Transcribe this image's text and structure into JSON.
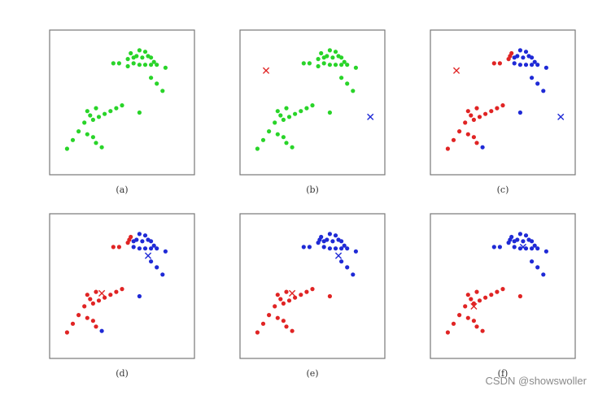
{
  "colors": {
    "green": "#29d429",
    "red": "#e02424",
    "blue": "#1f2ad6",
    "frame": "#777777"
  },
  "watermark": "CSDN @showswoller",
  "chart_data": [
    {
      "type": "scatter",
      "label": "(a)",
      "xlim": [
        -2.5,
        2.5
      ],
      "ylim": [
        -2.5,
        2.5
      ],
      "series": [
        {
          "color": "green",
          "points": [
            [
              0.2,
              1.5
            ],
            [
              0.3,
              1.7
            ],
            [
              0.4,
              1.55
            ],
            [
              0.5,
              1.6
            ],
            [
              0.6,
              1.8
            ],
            [
              0.7,
              1.55
            ],
            [
              0.8,
              1.75
            ],
            [
              0.9,
              1.6
            ],
            [
              1.0,
              1.55
            ],
            [
              1.2,
              1.3
            ],
            [
              0.6,
              1.3
            ],
            [
              0.8,
              1.3
            ],
            [
              1.0,
              1.3
            ],
            [
              1.1,
              1.4
            ],
            [
              -0.1,
              1.35
            ],
            [
              -0.3,
              1.35
            ],
            [
              0.2,
              1.25
            ],
            [
              0.4,
              1.35
            ],
            [
              1.2,
              0.65
            ],
            [
              1.0,
              0.85
            ],
            [
              1.5,
              1.2
            ],
            [
              1.4,
              0.4
            ],
            [
              -1.2,
              -0.3
            ],
            [
              -1.0,
              -0.6
            ],
            [
              -0.8,
              -0.5
            ],
            [
              -0.6,
              -0.4
            ],
            [
              -0.4,
              -0.3
            ],
            [
              -0.2,
              -0.2
            ],
            [
              0.0,
              -0.1
            ],
            [
              -0.9,
              -0.2
            ],
            [
              -1.1,
              -0.45
            ],
            [
              -1.3,
              -0.7
            ],
            [
              -1.5,
              -1.0
            ],
            [
              -1.7,
              -1.3
            ],
            [
              -1.9,
              -1.6
            ],
            [
              -1.2,
              -1.1
            ],
            [
              -0.9,
              -1.4
            ],
            [
              -0.7,
              -1.55
            ],
            [
              0.6,
              -0.35
            ],
            [
              -1.0,
              -1.2
            ]
          ]
        }
      ]
    },
    {
      "type": "scatter",
      "label": "(b)",
      "xlim": [
        -2.5,
        2.5
      ],
      "ylim": [
        -2.5,
        2.5
      ],
      "centroids": [
        {
          "x": -1.6,
          "y": 1.1,
          "color": "red"
        },
        {
          "x": 2.0,
          "y": -0.5,
          "color": "blue"
        }
      ],
      "series": [
        {
          "color": "green",
          "points": [
            [
              0.2,
              1.5
            ],
            [
              0.3,
              1.7
            ],
            [
              0.4,
              1.55
            ],
            [
              0.5,
              1.6
            ],
            [
              0.6,
              1.8
            ],
            [
              0.7,
              1.55
            ],
            [
              0.8,
              1.75
            ],
            [
              0.9,
              1.6
            ],
            [
              1.0,
              1.55
            ],
            [
              1.2,
              1.3
            ],
            [
              0.6,
              1.3
            ],
            [
              0.8,
              1.3
            ],
            [
              1.0,
              1.3
            ],
            [
              1.1,
              1.4
            ],
            [
              -0.1,
              1.35
            ],
            [
              -0.3,
              1.35
            ],
            [
              0.2,
              1.25
            ],
            [
              0.4,
              1.35
            ],
            [
              1.2,
              0.65
            ],
            [
              1.0,
              0.85
            ],
            [
              1.5,
              1.2
            ],
            [
              1.4,
              0.4
            ],
            [
              -1.2,
              -0.3
            ],
            [
              -1.0,
              -0.6
            ],
            [
              -0.8,
              -0.5
            ],
            [
              -0.6,
              -0.4
            ],
            [
              -0.4,
              -0.3
            ],
            [
              -0.2,
              -0.2
            ],
            [
              0.0,
              -0.1
            ],
            [
              -0.9,
              -0.2
            ],
            [
              -1.1,
              -0.45
            ],
            [
              -1.3,
              -0.7
            ],
            [
              -1.5,
              -1.0
            ],
            [
              -1.7,
              -1.3
            ],
            [
              -1.9,
              -1.6
            ],
            [
              -1.2,
              -1.1
            ],
            [
              -0.9,
              -1.4
            ],
            [
              -0.7,
              -1.55
            ],
            [
              0.6,
              -0.35
            ],
            [
              -1.0,
              -1.2
            ]
          ]
        }
      ]
    },
    {
      "type": "scatter",
      "label": "(c)",
      "xlim": [
        -2.5,
        2.5
      ],
      "ylim": [
        -2.5,
        2.5
      ],
      "centroids": [
        {
          "x": -1.6,
          "y": 1.1,
          "color": "red"
        },
        {
          "x": 2.0,
          "y": -0.5,
          "color": "blue"
        }
      ],
      "series": [
        {
          "color": "red",
          "points": [
            [
              -0.1,
              1.35
            ],
            [
              -0.3,
              1.35
            ],
            [
              0.2,
              1.5
            ],
            [
              0.3,
              1.7
            ],
            [
              0.25,
              1.6
            ],
            [
              -1.2,
              -0.3
            ],
            [
              -1.0,
              -0.6
            ],
            [
              -0.8,
              -0.5
            ],
            [
              -0.6,
              -0.4
            ],
            [
              -0.4,
              -0.3
            ],
            [
              -0.2,
              -0.2
            ],
            [
              0.0,
              -0.1
            ],
            [
              -0.9,
              -0.2
            ],
            [
              -1.1,
              -0.45
            ],
            [
              -1.3,
              -0.7
            ],
            [
              -1.5,
              -1.0
            ],
            [
              -1.7,
              -1.3
            ],
            [
              -1.9,
              -1.6
            ],
            [
              -1.2,
              -1.1
            ],
            [
              -0.9,
              -1.4
            ],
            [
              -1.0,
              -1.2
            ]
          ]
        },
        {
          "color": "blue",
          "points": [
            [
              0.4,
              1.55
            ],
            [
              0.5,
              1.6
            ],
            [
              0.6,
              1.8
            ],
            [
              0.7,
              1.55
            ],
            [
              0.8,
              1.75
            ],
            [
              0.9,
              1.6
            ],
            [
              1.0,
              1.55
            ],
            [
              1.2,
              1.3
            ],
            [
              0.6,
              1.3
            ],
            [
              0.8,
              1.3
            ],
            [
              1.0,
              1.3
            ],
            [
              1.1,
              1.4
            ],
            [
              0.4,
              1.35
            ],
            [
              1.2,
              0.65
            ],
            [
              1.0,
              0.85
            ],
            [
              1.5,
              1.2
            ],
            [
              1.4,
              0.4
            ],
            [
              0.6,
              -0.35
            ],
            [
              -0.7,
              -1.55
            ]
          ]
        }
      ]
    },
    {
      "type": "scatter",
      "label": "(d)",
      "xlim": [
        -2.5,
        2.5
      ],
      "ylim": [
        -2.5,
        2.5
      ],
      "centroids": [
        {
          "x": -0.7,
          "y": -0.25,
          "color": "red"
        },
        {
          "x": 0.9,
          "y": 1.05,
          "color": "blue"
        }
      ],
      "series": [
        {
          "color": "red",
          "points": [
            [
              -0.1,
              1.35
            ],
            [
              -0.3,
              1.35
            ],
            [
              0.2,
              1.5
            ],
            [
              0.3,
              1.7
            ],
            [
              0.25,
              1.6
            ],
            [
              -1.2,
              -0.3
            ],
            [
              -1.0,
              -0.6
            ],
            [
              -0.8,
              -0.5
            ],
            [
              -0.6,
              -0.4
            ],
            [
              -0.4,
              -0.3
            ],
            [
              -0.2,
              -0.2
            ],
            [
              0.0,
              -0.1
            ],
            [
              -0.9,
              -0.2
            ],
            [
              -1.1,
              -0.45
            ],
            [
              -1.3,
              -0.7
            ],
            [
              -1.5,
              -1.0
            ],
            [
              -1.7,
              -1.3
            ],
            [
              -1.9,
              -1.6
            ],
            [
              -1.2,
              -1.1
            ],
            [
              -0.9,
              -1.4
            ],
            [
              -1.0,
              -1.2
            ]
          ]
        },
        {
          "color": "blue",
          "points": [
            [
              0.4,
              1.55
            ],
            [
              0.5,
              1.6
            ],
            [
              0.6,
              1.8
            ],
            [
              0.7,
              1.55
            ],
            [
              0.8,
              1.75
            ],
            [
              0.9,
              1.6
            ],
            [
              1.0,
              1.55
            ],
            [
              1.2,
              1.3
            ],
            [
              0.6,
              1.3
            ],
            [
              0.8,
              1.3
            ],
            [
              1.0,
              1.3
            ],
            [
              1.1,
              1.4
            ],
            [
              0.4,
              1.35
            ],
            [
              1.2,
              0.65
            ],
            [
              1.0,
              0.85
            ],
            [
              1.5,
              1.2
            ],
            [
              1.4,
              0.4
            ],
            [
              0.6,
              -0.35
            ],
            [
              -0.7,
              -1.55
            ]
          ]
        }
      ]
    },
    {
      "type": "scatter",
      "label": "(e)",
      "xlim": [
        -2.5,
        2.5
      ],
      "ylim": [
        -2.5,
        2.5
      ],
      "centroids": [
        {
          "x": -0.7,
          "y": -0.25,
          "color": "red"
        },
        {
          "x": 0.9,
          "y": 1.05,
          "color": "blue"
        }
      ],
      "series": [
        {
          "color": "red",
          "points": [
            [
              -1.2,
              -0.3
            ],
            [
              -1.0,
              -0.6
            ],
            [
              -0.8,
              -0.5
            ],
            [
              -0.6,
              -0.4
            ],
            [
              -0.4,
              -0.3
            ],
            [
              -0.2,
              -0.2
            ],
            [
              0.0,
              -0.1
            ],
            [
              -0.9,
              -0.2
            ],
            [
              -1.1,
              -0.45
            ],
            [
              -1.3,
              -0.7
            ],
            [
              -1.5,
              -1.0
            ],
            [
              -1.7,
              -1.3
            ],
            [
              -1.9,
              -1.6
            ],
            [
              -1.2,
              -1.1
            ],
            [
              -0.9,
              -1.4
            ],
            [
              -1.0,
              -1.2
            ],
            [
              -0.7,
              -1.55
            ],
            [
              0.6,
              -0.35
            ]
          ]
        },
        {
          "color": "blue",
          "points": [
            [
              0.2,
              1.5
            ],
            [
              0.3,
              1.7
            ],
            [
              0.4,
              1.55
            ],
            [
              0.5,
              1.6
            ],
            [
              0.6,
              1.8
            ],
            [
              0.7,
              1.55
            ],
            [
              0.8,
              1.75
            ],
            [
              0.9,
              1.6
            ],
            [
              1.0,
              1.55
            ],
            [
              1.2,
              1.3
            ],
            [
              0.6,
              1.3
            ],
            [
              0.8,
              1.3
            ],
            [
              1.0,
              1.3
            ],
            [
              1.1,
              1.4
            ],
            [
              -0.1,
              1.35
            ],
            [
              -0.3,
              1.35
            ],
            [
              0.25,
              1.6
            ],
            [
              0.4,
              1.35
            ],
            [
              1.2,
              0.65
            ],
            [
              1.0,
              0.85
            ],
            [
              1.5,
              1.2
            ],
            [
              1.4,
              0.4
            ]
          ]
        }
      ]
    },
    {
      "type": "scatter",
      "label": "(f)",
      "xlim": [
        -2.5,
        2.5
      ],
      "ylim": [
        -2.5,
        2.5
      ],
      "centroids": [
        {
          "x": -1.0,
          "y": -0.7,
          "color": "red"
        },
        {
          "x": 0.7,
          "y": 1.35,
          "color": "blue"
        }
      ],
      "series": [
        {
          "color": "red",
          "points": [
            [
              -1.2,
              -0.3
            ],
            [
              -1.0,
              -0.6
            ],
            [
              -0.8,
              -0.5
            ],
            [
              -0.6,
              -0.4
            ],
            [
              -0.4,
              -0.3
            ],
            [
              -0.2,
              -0.2
            ],
            [
              0.0,
              -0.1
            ],
            [
              -0.9,
              -0.2
            ],
            [
              -1.1,
              -0.45
            ],
            [
              -1.3,
              -0.7
            ],
            [
              -1.5,
              -1.0
            ],
            [
              -1.7,
              -1.3
            ],
            [
              -1.9,
              -1.6
            ],
            [
              -1.2,
              -1.1
            ],
            [
              -0.9,
              -1.4
            ],
            [
              -1.0,
              -1.2
            ],
            [
              -0.7,
              -1.55
            ],
            [
              0.6,
              -0.35
            ]
          ]
        },
        {
          "color": "blue",
          "points": [
            [
              0.2,
              1.5
            ],
            [
              0.3,
              1.7
            ],
            [
              0.4,
              1.55
            ],
            [
              0.5,
              1.6
            ],
            [
              0.6,
              1.8
            ],
            [
              0.7,
              1.55
            ],
            [
              0.8,
              1.75
            ],
            [
              0.9,
              1.6
            ],
            [
              1.0,
              1.55
            ],
            [
              1.2,
              1.3
            ],
            [
              0.6,
              1.3
            ],
            [
              0.8,
              1.3
            ],
            [
              1.0,
              1.3
            ],
            [
              1.1,
              1.4
            ],
            [
              -0.1,
              1.35
            ],
            [
              -0.3,
              1.35
            ],
            [
              0.25,
              1.6
            ],
            [
              0.4,
              1.35
            ],
            [
              1.2,
              0.65
            ],
            [
              1.0,
              0.85
            ],
            [
              1.5,
              1.2
            ],
            [
              1.4,
              0.4
            ]
          ]
        }
      ]
    }
  ]
}
